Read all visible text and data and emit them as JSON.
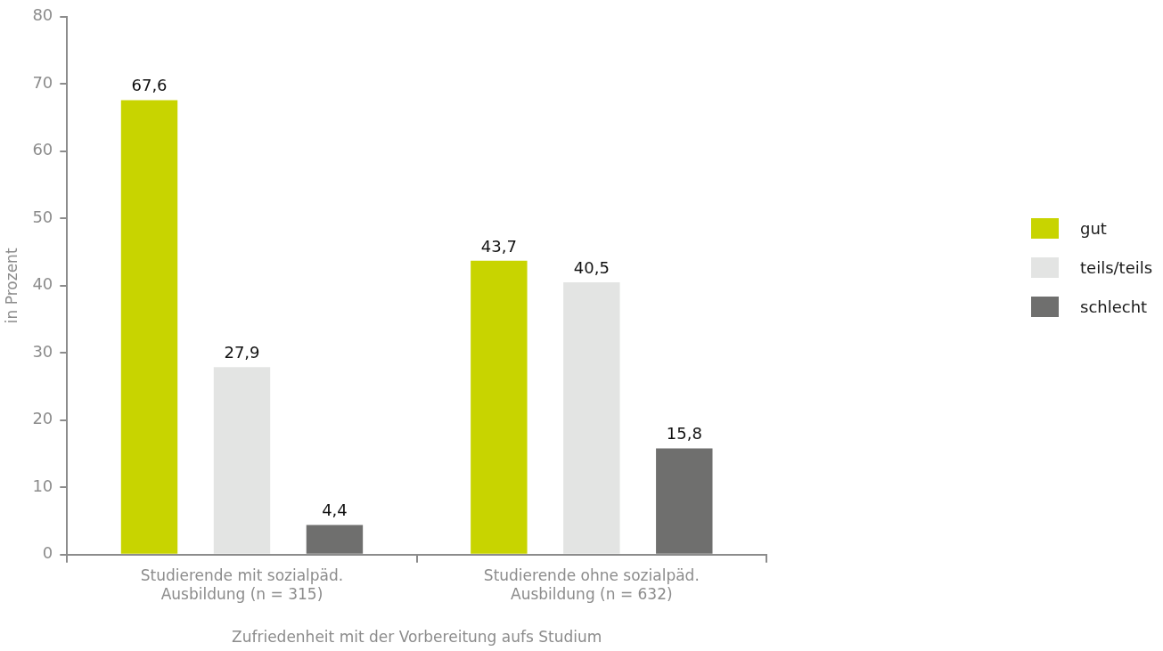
{
  "chart_data": {
    "type": "bar",
    "xlabel": "Zufriedenheit mit der Vorbereitung aufs Studium",
    "ylabel": "in Prozent",
    "categories": [
      "Studierende mit sozialpäd.\nAusbildung (n = 315)",
      "Studierende ohne sozialpäd.\nAusbildung (n = 632)"
    ],
    "series": [
      {
        "name": "gut",
        "color": "#c8d400",
        "values": [
          67.6,
          43.7
        ],
        "value_labels": [
          "67,6",
          "43,7"
        ]
      },
      {
        "name": "teils/teils",
        "color": "#e3e4e3",
        "values": [
          27.9,
          40.5
        ],
        "value_labels": [
          "27,9",
          "40,5"
        ]
      },
      {
        "name": "schlecht",
        "color": "#6f6f6e",
        "values": [
          4.4,
          15.8
        ],
        "value_labels": [
          "4,4",
          "15,8"
        ]
      }
    ],
    "ylim": [
      0,
      80
    ],
    "yticks": [
      0,
      10,
      20,
      30,
      40,
      50,
      60,
      70,
      80
    ],
    "grid": false,
    "legend": "right"
  }
}
